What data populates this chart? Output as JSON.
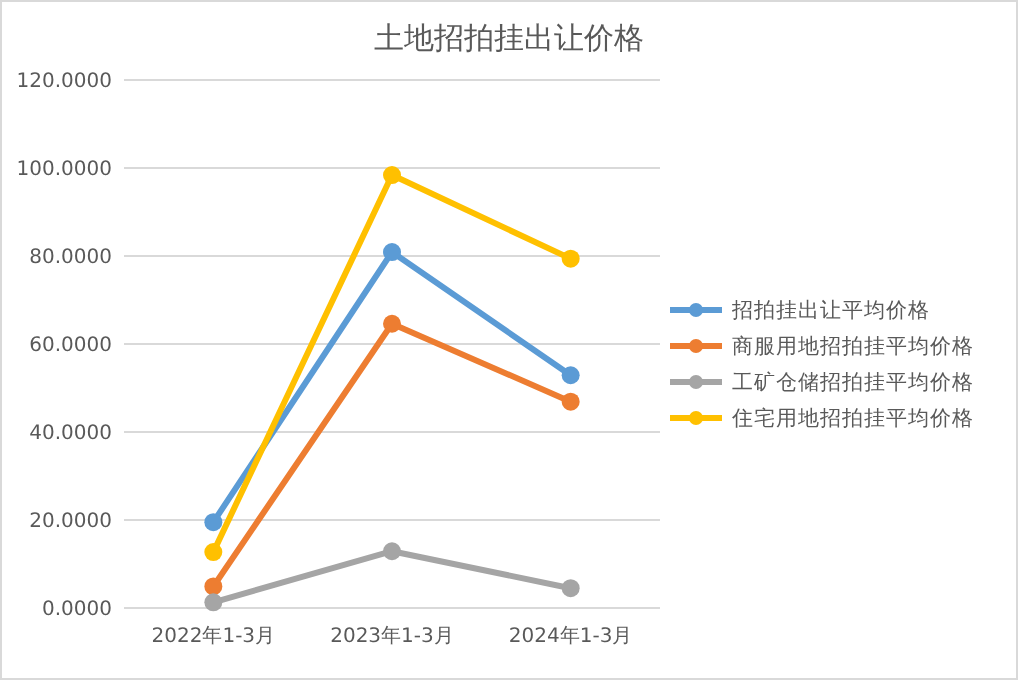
{
  "chart_data": {
    "type": "line",
    "title": "土地招拍挂出让价格",
    "categories": [
      "2022年1-3月",
      "2023年1-3月",
      "2024年1-3月"
    ],
    "series": [
      {
        "name": "招拍挂出让平均价格",
        "color": "#5b9bd5",
        "values": [
          19.5,
          80.9,
          52.9
        ]
      },
      {
        "name": "商服用地招拍挂平均价格",
        "color": "#ed7d31",
        "values": [
          4.9,
          64.6,
          46.9
        ]
      },
      {
        "name": "工矿仓储招拍挂平均价格",
        "color": "#a5a5a5",
        "values": [
          1.3,
          12.9,
          4.5
        ]
      },
      {
        "name": "住宅用地招拍挂平均价格",
        "color": "#ffc000",
        "values": [
          12.7,
          98.4,
          79.4
        ]
      }
    ],
    "ylim": [
      0,
      120
    ],
    "yticks": [
      {
        "value": 0,
        "label": "0.0000"
      },
      {
        "value": 20,
        "label": "20.0000"
      },
      {
        "value": 40,
        "label": "40.0000"
      },
      {
        "value": 60,
        "label": "60.0000"
      },
      {
        "value": 80,
        "label": "80.0000"
      },
      {
        "value": 100,
        "label": "100.0000"
      },
      {
        "value": 120,
        "label": "120.0000"
      }
    ],
    "grid": "y",
    "legend": "right",
    "marker": "circle",
    "line_style": "solid"
  }
}
